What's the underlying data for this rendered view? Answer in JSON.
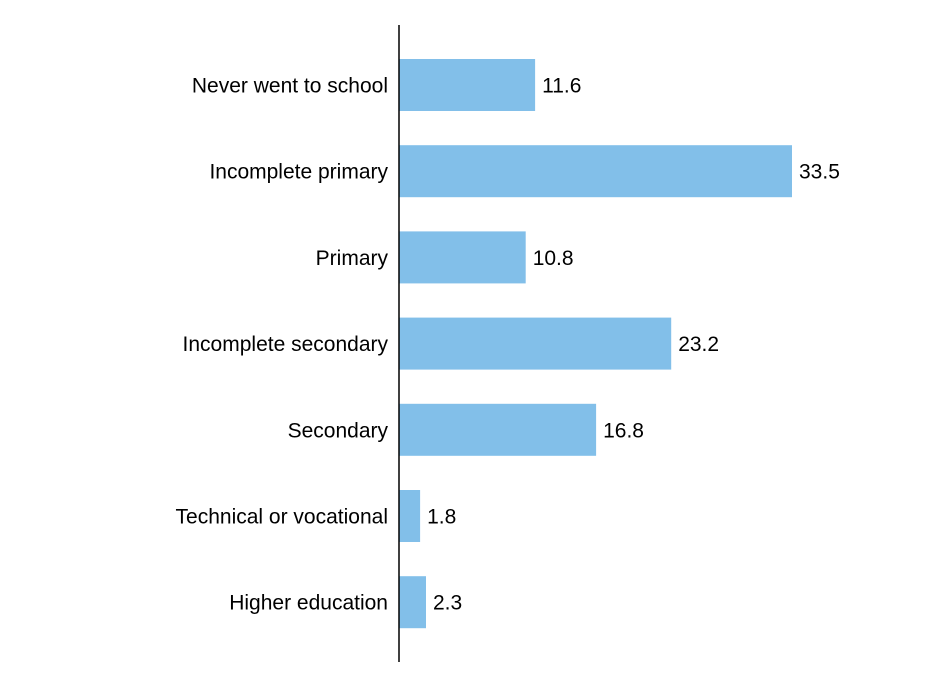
{
  "chart_data": {
    "type": "bar",
    "orientation": "horizontal",
    "categories": [
      "Never went to school",
      "Incomplete primary",
      "Primary",
      "Incomplete secondary",
      "Secondary",
      "Technical or vocational",
      "Higher education"
    ],
    "values": [
      11.6,
      33.5,
      10.8,
      23.2,
      16.8,
      1.8,
      2.3
    ],
    "value_labels": [
      "11.6",
      "33.5",
      "10.8",
      "23.2",
      "16.8",
      "1.8",
      "2.3"
    ],
    "title": "",
    "xlabel": "",
    "ylabel": "",
    "xlim": [
      0,
      33.5
    ],
    "grid": false,
    "legend": "none",
    "bar_color": "#82bfe9",
    "axis_color": "#000000"
  }
}
